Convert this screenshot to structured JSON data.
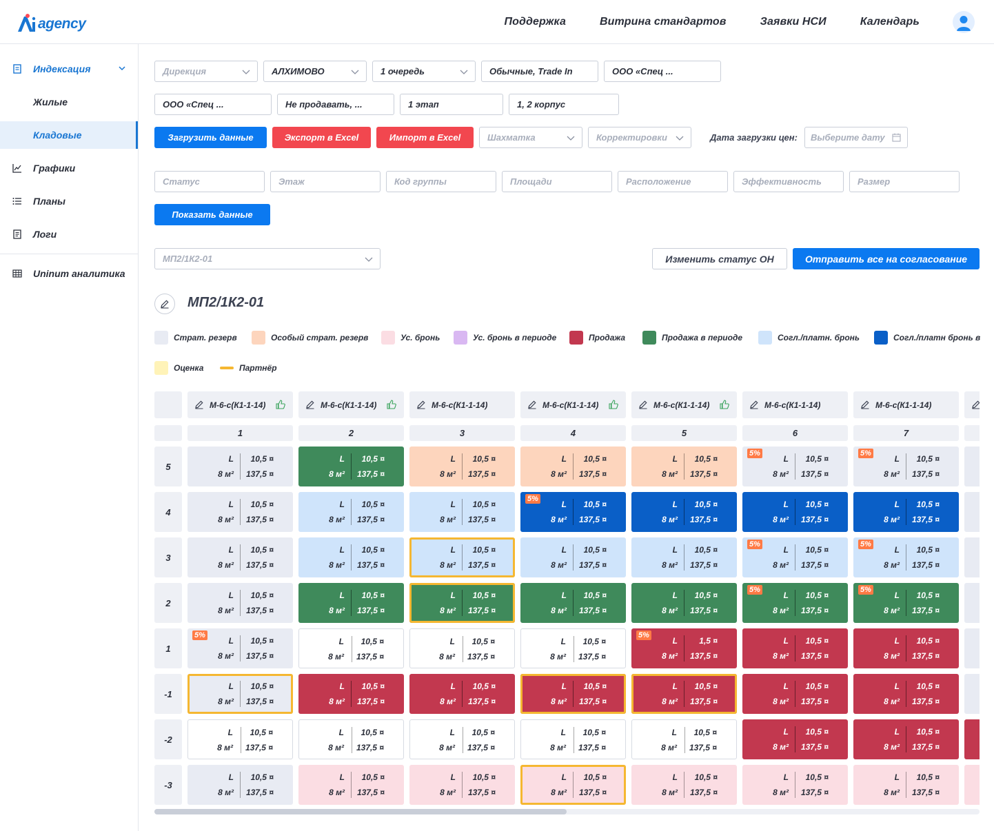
{
  "logo": {
    "text": "agency"
  },
  "topnav": [
    "Поддержка",
    "Витрина стандартов",
    "Заявки НСИ",
    "Календарь"
  ],
  "sidebar": {
    "indexation": "Индексация",
    "residential": "Жилые",
    "storage": "Кладовые",
    "charts": "Графики",
    "plans": "Планы",
    "logs": "Логи",
    "analytics": "Uninum аналитика"
  },
  "filters": {
    "direction": "Дирекция",
    "project": "АЛХИМОВО",
    "queue": "1 очередь",
    "deal_type": "Обычные, Trade In",
    "company1": "ООО «Спец ...",
    "company2": "ООО «Спец ...",
    "sale_status": "Не продавать, ...",
    "stage": "1 этап",
    "building": "1, 2 корпус",
    "chess": "Шахматка",
    "corrections": "Корректировки",
    "price_date_label": "Дата загрузки цен:",
    "date_placeholder": "Выберите дату"
  },
  "buttons": {
    "load": "Загрузить данные",
    "export": "Экспорт в Excel",
    "import": "Импорт в Excel",
    "show": "Показать данные",
    "change_status": "Изменить статус ОН",
    "send_all": "Отправить все на согласование"
  },
  "secondary_filters": [
    "Статус",
    "Этаж",
    "Код группы",
    "Площади",
    "Расположение",
    "Эффективность",
    "Размер"
  ],
  "section_select": "МП2/1К2-01",
  "page_title": "МП2/1К2-01",
  "legend": [
    {
      "label": "Страт. резерв",
      "color": "#e8ebf3"
    },
    {
      "label": "Особый страт. резерв",
      "color": "#fdd5bd"
    },
    {
      "label": "Ус. бронь",
      "color": "#fbdde3"
    },
    {
      "label": "Ус. бронь в периоде",
      "color": "#d9b8f2"
    },
    {
      "label": "Продажа",
      "color": "#c2384f"
    },
    {
      "label": "Продажа в периоде",
      "color": "#3f8a5b"
    },
    {
      "label": "Согл./платн. бронь",
      "color": "#cfe4fb"
    },
    {
      "label": "Согл./платн бронь в",
      "color": "#0a5fc7"
    },
    {
      "label": "Оценка",
      "color": "#fff3b8"
    },
    {
      "label": "Партнёр",
      "color": "#f5b731"
    }
  ],
  "grid": {
    "columns": [
      {
        "code": "М-6-с(К1-1-14)",
        "num": "1",
        "thumb": true
      },
      {
        "code": "М-6-с(К1-1-14)",
        "num": "2",
        "thumb": true
      },
      {
        "code": "М-6-с(К1-1-14)",
        "num": "3",
        "thumb": false
      },
      {
        "code": "М-6-с(К1-1-14)",
        "num": "4",
        "thumb": true
      },
      {
        "code": "М-6-с(К1-1-14)",
        "num": "5",
        "thumb": true
      },
      {
        "code": "М-6-с(К1-1-14)",
        "num": "6",
        "thumb": false
      },
      {
        "code": "М-6-с(К1-1-14)",
        "num": "7",
        "thumb": false
      }
    ],
    "floors": [
      "5",
      "4",
      "3",
      "2",
      "1",
      "-1",
      "-2",
      "-3"
    ],
    "cells": [
      [
        {
          "s": "res",
          "l": "L",
          "a": "8 м²",
          "p": "10,5 ¤",
          "t": "137,5 ¤"
        },
        {
          "s": "salep",
          "l": "L",
          "a": "8 м²",
          "p": "10,5 ¤",
          "t": "137,5 ¤"
        },
        {
          "s": "osob",
          "l": "L",
          "a": "8 м²",
          "p": "10,5 ¤",
          "t": "137,5 ¤"
        },
        {
          "s": "osob",
          "l": "L",
          "a": "8 м²",
          "p": "10,5 ¤",
          "t": "137,5 ¤"
        },
        {
          "s": "osob",
          "l": "L",
          "a": "8 м²",
          "p": "10,5 ¤",
          "t": "137,5 ¤"
        },
        {
          "s": "res",
          "l": "L",
          "a": "8 м²",
          "p": "10,5 ¤",
          "t": "137,5 ¤",
          "pct": "5%"
        },
        {
          "s": "res",
          "l": "L",
          "a": "8 м²",
          "p": "10,5 ¤",
          "t": "137,5 ¤",
          "pct": "5%"
        }
      ],
      [
        {
          "s": "res",
          "l": "L",
          "a": "8 м²",
          "p": "10,5 ¤",
          "t": "137,5 ¤"
        },
        {
          "s": "sogl",
          "l": "L",
          "a": "8 м²",
          "p": "10,5 ¤",
          "t": "137,5 ¤"
        },
        {
          "s": "sogl",
          "l": "L",
          "a": "8 м²",
          "p": "10,5 ¤",
          "t": "137,5 ¤"
        },
        {
          "s": "soglp",
          "l": "L",
          "a": "8 м²",
          "p": "10,5 ¤",
          "t": "137,5 ¤",
          "pct": "5%"
        },
        {
          "s": "soglp",
          "l": "L",
          "a": "8 м²",
          "p": "10,5 ¤",
          "t": "137,5 ¤"
        },
        {
          "s": "soglp",
          "l": "L",
          "a": "8 м²",
          "p": "10,5 ¤",
          "t": "137,5 ¤"
        },
        {
          "s": "soglp",
          "l": "L",
          "a": "8 м²",
          "p": "10,5 ¤",
          "t": "137,5 ¤"
        }
      ],
      [
        {
          "s": "res",
          "l": "L",
          "a": "8 м²",
          "p": "10,5 ¤",
          "t": "137,5 ¤"
        },
        {
          "s": "sogl",
          "l": "L",
          "a": "8 м²",
          "p": "10,5 ¤",
          "t": "137,5 ¤"
        },
        {
          "s": "sogl",
          "l": "L",
          "a": "8 м²",
          "p": "10,5 ¤",
          "t": "137,5 ¤",
          "partner": true
        },
        {
          "s": "sogl",
          "l": "L",
          "a": "8 м²",
          "p": "10,5 ¤",
          "t": "137,5 ¤"
        },
        {
          "s": "sogl",
          "l": "L",
          "a": "8 м²",
          "p": "10,5 ¤",
          "t": "137,5 ¤"
        },
        {
          "s": "sogl",
          "l": "L",
          "a": "8 м²",
          "p": "10,5 ¤",
          "t": "137,5 ¤",
          "pct": "5%"
        },
        {
          "s": "sogl",
          "l": "L",
          "a": "8 м²",
          "p": "10,5 ¤",
          "t": "137,5 ¤",
          "pct": "5%"
        }
      ],
      [
        {
          "s": "res",
          "l": "L",
          "a": "8 м²",
          "p": "10,5 ¤",
          "t": "137,5 ¤"
        },
        {
          "s": "salep",
          "l": "L",
          "a": "8 м²",
          "p": "10,5 ¤",
          "t": "137,5 ¤"
        },
        {
          "s": "salep",
          "l": "L",
          "a": "8 м²",
          "p": "10,5 ¤",
          "t": "137,5 ¤",
          "partner": true
        },
        {
          "s": "salep",
          "l": "L",
          "a": "8 м²",
          "p": "10,5 ¤",
          "t": "137,5 ¤"
        },
        {
          "s": "salep",
          "l": "L",
          "a": "8 м²",
          "p": "10,5 ¤",
          "t": "137,5 ¤"
        },
        {
          "s": "salep",
          "l": "L",
          "a": "8 м²",
          "p": "10,5 ¤",
          "t": "137,5 ¤",
          "pct": "5%"
        },
        {
          "s": "salep",
          "l": "L",
          "a": "8 м²",
          "p": "10,5 ¤",
          "t": "137,5 ¤",
          "pct": "5%"
        }
      ],
      [
        {
          "s": "res",
          "l": "L",
          "a": "8 м²",
          "p": "10,5 ¤",
          "t": "137,5 ¤",
          "pct": "5%"
        },
        {
          "s": "free",
          "l": "L",
          "a": "8 м²",
          "p": "10,5 ¤",
          "t": "137,5 ¤"
        },
        {
          "s": "free",
          "l": "L",
          "a": "8 м²",
          "p": "10,5 ¤",
          "t": "137,5 ¤"
        },
        {
          "s": "free",
          "l": "L",
          "a": "8 м²",
          "p": "10,5 ¤",
          "t": "137,5 ¤"
        },
        {
          "s": "sale",
          "l": "L",
          "a": "8 м²",
          "p": "1,5 ¤",
          "t": "137,5 ¤",
          "pct": "5%"
        },
        {
          "s": "sale",
          "l": "L",
          "a": "8 м²",
          "p": "10,5 ¤",
          "t": "137,5 ¤"
        },
        {
          "s": "sale",
          "l": "L",
          "a": "8 м²",
          "p": "10,5 ¤",
          "t": "137,5 ¤"
        }
      ],
      [
        {
          "s": "res",
          "l": "L",
          "a": "8 м²",
          "p": "10,5 ¤",
          "t": "137,5 ¤",
          "partner": true
        },
        {
          "s": "sale",
          "l": "L",
          "a": "8 м²",
          "p": "10,5 ¤",
          "t": "137,5 ¤"
        },
        {
          "s": "sale",
          "l": "L",
          "a": "8 м²",
          "p": "10,5 ¤",
          "t": "137,5 ¤"
        },
        {
          "s": "sale",
          "l": "L",
          "a": "8 м²",
          "p": "10,5 ¤",
          "t": "137,5 ¤",
          "partner": true
        },
        {
          "s": "sale",
          "l": "L",
          "a": "8 м²",
          "p": "10,5 ¤",
          "t": "137,5 ¤",
          "partner": true
        },
        {
          "s": "sale",
          "l": "L",
          "a": "8 м²",
          "p": "10,5 ¤",
          "t": "137,5 ¤"
        },
        {
          "s": "sale",
          "l": "L",
          "a": "8 м²",
          "p": "10,5 ¤",
          "t": "137,5 ¤"
        }
      ],
      [
        {
          "s": "free",
          "l": "L",
          "a": "8 м²",
          "p": "10,5 ¤",
          "t": "137,5 ¤"
        },
        {
          "s": "free",
          "l": "L",
          "a": "8 м²",
          "p": "10,5 ¤",
          "t": "137,5 ¤"
        },
        {
          "s": "free",
          "l": "L",
          "a": "8 м²",
          "p": "10,5 ¤",
          "t": "137,5 ¤"
        },
        {
          "s": "free",
          "l": "L",
          "a": "8 м²",
          "p": "10,5 ¤",
          "t": "137,5 ¤"
        },
        {
          "s": "free",
          "l": "L",
          "a": "8 м²",
          "p": "10,5 ¤",
          "t": "137,5 ¤"
        },
        {
          "s": "sale",
          "l": "L",
          "a": "8 м²",
          "p": "10,5 ¤",
          "t": "137,5 ¤"
        },
        {
          "s": "sale",
          "l": "L",
          "a": "8 м²",
          "p": "10,5 ¤",
          "t": "137,5 ¤"
        }
      ],
      [
        {
          "s": "res",
          "l": "L",
          "a": "8 м²",
          "p": "10,5 ¤",
          "t": "137,5 ¤"
        },
        {
          "s": "bron",
          "l": "L",
          "a": "8 м²",
          "p": "10,5 ¤",
          "t": "137,5 ¤"
        },
        {
          "s": "bron",
          "l": "L",
          "a": "8 м²",
          "p": "10,5 ¤",
          "t": "137,5 ¤"
        },
        {
          "s": "bron",
          "l": "L",
          "a": "8 м²",
          "p": "10,5 ¤",
          "t": "137,5 ¤",
          "partner": true
        },
        {
          "s": "bron",
          "l": "L",
          "a": "8 м²",
          "p": "10,5 ¤",
          "t": "137,5 ¤"
        },
        {
          "s": "bron",
          "l": "L",
          "a": "8 м²",
          "p": "10,5 ¤",
          "t": "137,5 ¤"
        },
        {
          "s": "bron",
          "l": "L",
          "a": "8 м²",
          "p": "10,5 ¤",
          "t": "137,5 ¤"
        }
      ]
    ],
    "edge_states": [
      "res",
      "res",
      "res",
      "res",
      "res",
      "res",
      "sale",
      "bron"
    ]
  }
}
